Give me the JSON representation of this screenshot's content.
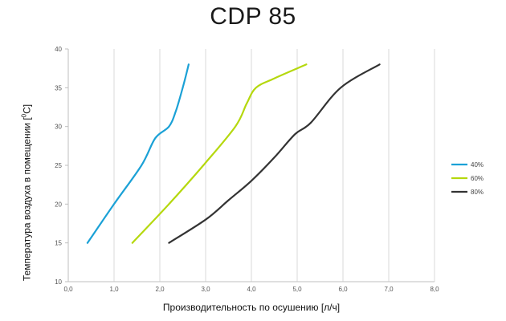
{
  "chart_data": {
    "type": "line",
    "title": "CDP 85",
    "xlabel": "Производительность по осушению [л/ч]",
    "ylabel_main": "Температура воздуха в помещении [",
    "ylabel_sup": "0",
    "ylabel_end": "C]",
    "xlim": [
      0,
      8
    ],
    "ylim": [
      10,
      40
    ],
    "x_ticks": [
      "0,0",
      "1,0",
      "2,0",
      "3,0",
      "4,0",
      "5,0",
      "6,0",
      "7,0",
      "8,0"
    ],
    "y_ticks": [
      "10",
      "15",
      "20",
      "25",
      "30",
      "35",
      "40"
    ],
    "grid": "vertical",
    "legend": "right",
    "series": [
      {
        "name": "40%",
        "color": "#1ba1d6",
        "points": [
          [
            0.42,
            15
          ],
          [
            1.0,
            20
          ],
          [
            1.6,
            25
          ],
          [
            1.9,
            28.5
          ],
          [
            2.2,
            30
          ],
          [
            2.35,
            32
          ],
          [
            2.5,
            35
          ],
          [
            2.63,
            38
          ]
        ]
      },
      {
        "name": "60%",
        "color": "#b5d80e",
        "points": [
          [
            1.4,
            15
          ],
          [
            2.2,
            20
          ],
          [
            2.95,
            25
          ],
          [
            3.65,
            30
          ],
          [
            3.9,
            33
          ],
          [
            4.1,
            35
          ],
          [
            4.5,
            36.2
          ],
          [
            5.2,
            38
          ]
        ]
      },
      {
        "name": "80%",
        "color": "#333333",
        "points": [
          [
            2.2,
            15
          ],
          [
            3.0,
            18
          ],
          [
            3.5,
            20.5
          ],
          [
            4.0,
            23
          ],
          [
            4.5,
            26
          ],
          [
            4.95,
            29
          ],
          [
            5.3,
            30.5
          ],
          [
            5.95,
            35
          ],
          [
            6.8,
            38
          ]
        ]
      }
    ]
  }
}
